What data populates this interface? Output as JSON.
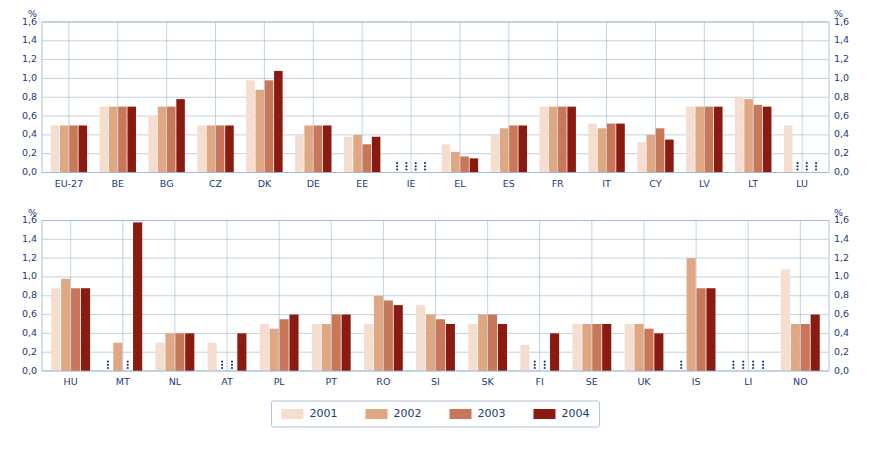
{
  "chart_data": [
    {
      "type": "bar",
      "categories": [
        "EU-27",
        "BE",
        "BG",
        "CZ",
        "DK",
        "DE",
        "EE",
        "IE",
        "EL",
        "ES",
        "FR",
        "IT",
        "CY",
        "LV",
        "LT",
        "LU"
      ],
      "series": [
        {
          "name": "2001",
          "color": "#f5ddd0",
          "values": [
            0.5,
            0.7,
            0.6,
            0.5,
            0.98,
            0.4,
            0.38,
            null,
            0.3,
            0.4,
            0.7,
            0.52,
            0.32,
            0.7,
            0.8,
            0.5
          ]
        },
        {
          "name": "2002",
          "color": "#dfa882",
          "values": [
            0.5,
            0.7,
            0.7,
            0.5,
            0.88,
            0.5,
            0.4,
            null,
            0.22,
            0.47,
            0.7,
            0.47,
            0.4,
            0.7,
            0.78,
            null
          ]
        },
        {
          "name": "2003",
          "color": "#c87858",
          "values": [
            0.5,
            0.7,
            0.7,
            0.5,
            0.98,
            0.5,
            0.3,
            null,
            0.17,
            0.5,
            0.7,
            0.52,
            0.47,
            0.7,
            0.72,
            null
          ]
        },
        {
          "name": "2004",
          "color": "#8b1a10",
          "values": [
            0.5,
            0.7,
            0.78,
            0.5,
            1.08,
            0.5,
            0.38,
            null,
            0.15,
            0.5,
            0.7,
            0.52,
            0.35,
            0.7,
            0.7,
            null
          ]
        }
      ],
      "ylim": [
        0,
        1.6
      ],
      "yticks": [
        {
          "value": 0,
          "label": "0,0"
        },
        {
          "value": 0.2,
          "label": "0,2"
        },
        {
          "value": 0.4,
          "label": "0,4"
        },
        {
          "value": 0.6,
          "label": "0,6"
        },
        {
          "value": 0.8,
          "label": "0,8"
        },
        {
          "value": 1.0,
          "label": "1,0"
        },
        {
          "value": 1.2,
          "label": "1,2"
        },
        {
          "value": 1.4,
          "label": "1,4"
        },
        {
          "value": 1.6,
          "label": "1,6"
        }
      ],
      "y2lim": [
        0,
        1.6
      ],
      "y2ticks": [
        {
          "value": 0,
          "label": "0,0"
        },
        {
          "value": 0.2,
          "label": "0,2"
        },
        {
          "value": 0.4,
          "label": "0,4"
        },
        {
          "value": 0.6,
          "label": "0,6"
        },
        {
          "value": 0.8,
          "label": "0,8"
        },
        {
          "value": 1.0,
          "label": "1,0"
        },
        {
          "value": 1.2,
          "label": "1,2"
        },
        {
          "value": 1.4,
          "label": "1,4"
        },
        {
          "value": 1.6,
          "label": "1,6"
        }
      ],
      "ylabel": "%",
      "y2label": "%",
      "grid": true
    },
    {
      "type": "bar",
      "categories": [
        "HU",
        "MT",
        "NL",
        "AT",
        "PL",
        "PT",
        "RO",
        "SI",
        "SK",
        "FI",
        "SE",
        "UK",
        "IS",
        "LI",
        "NO"
      ],
      "series": [
        {
          "name": "2001",
          "color": "#f5ddd0",
          "values": [
            0.88,
            null,
            0.3,
            0.3,
            0.5,
            0.5,
            0.5,
            0.7,
            0.5,
            0.28,
            0.5,
            0.5,
            null,
            null,
            1.08
          ]
        },
        {
          "name": "2002",
          "color": "#dfa882",
          "values": [
            0.98,
            0.3,
            0.4,
            null,
            0.45,
            0.5,
            0.8,
            0.6,
            0.6,
            null,
            0.5,
            0.5,
            1.2,
            null,
            0.5
          ]
        },
        {
          "name": "2003",
          "color": "#c87858",
          "values": [
            0.88,
            null,
            0.4,
            null,
            0.55,
            0.6,
            0.75,
            0.55,
            0.6,
            null,
            0.5,
            0.45,
            0.88,
            null,
            0.5
          ]
        },
        {
          "name": "2004",
          "color": "#8b1a10",
          "values": [
            0.88,
            1.58,
            0.4,
            0.4,
            0.6,
            0.6,
            0.7,
            0.5,
            0.5,
            0.4,
            0.5,
            0.4,
            0.88,
            null,
            0.6
          ]
        }
      ],
      "ylim": [
        0,
        1.6
      ],
      "yticks": [
        {
          "value": 0,
          "label": "0,0"
        },
        {
          "value": 0.2,
          "label": "0,2"
        },
        {
          "value": 0.4,
          "label": "0,4"
        },
        {
          "value": 0.6,
          "label": "0,6"
        },
        {
          "value": 0.8,
          "label": "0,8"
        },
        {
          "value": 1.0,
          "label": "1,0"
        },
        {
          "value": 1.2,
          "label": "1,2"
        },
        {
          "value": 1.4,
          "label": "1,4"
        },
        {
          "value": 1.6,
          "label": "1,6"
        }
      ],
      "y2lim": [
        0,
        1.6
      ],
      "y2ticks": [
        {
          "value": 0,
          "label": "0,0"
        },
        {
          "value": 0.2,
          "label": "0,2"
        },
        {
          "value": 0.4,
          "label": "0,4"
        },
        {
          "value": 0.6,
          "label": "0,6"
        },
        {
          "value": 0.8,
          "label": "0,8"
        },
        {
          "value": 1.0,
          "label": "1,0"
        },
        {
          "value": 1.2,
          "label": "1,2"
        },
        {
          "value": 1.4,
          "label": "1,4"
        },
        {
          "value": 1.6,
          "label": "1,6"
        }
      ],
      "ylabel": "%",
      "y2label": "%",
      "grid": true,
      "legend": "bottom"
    }
  ]
}
